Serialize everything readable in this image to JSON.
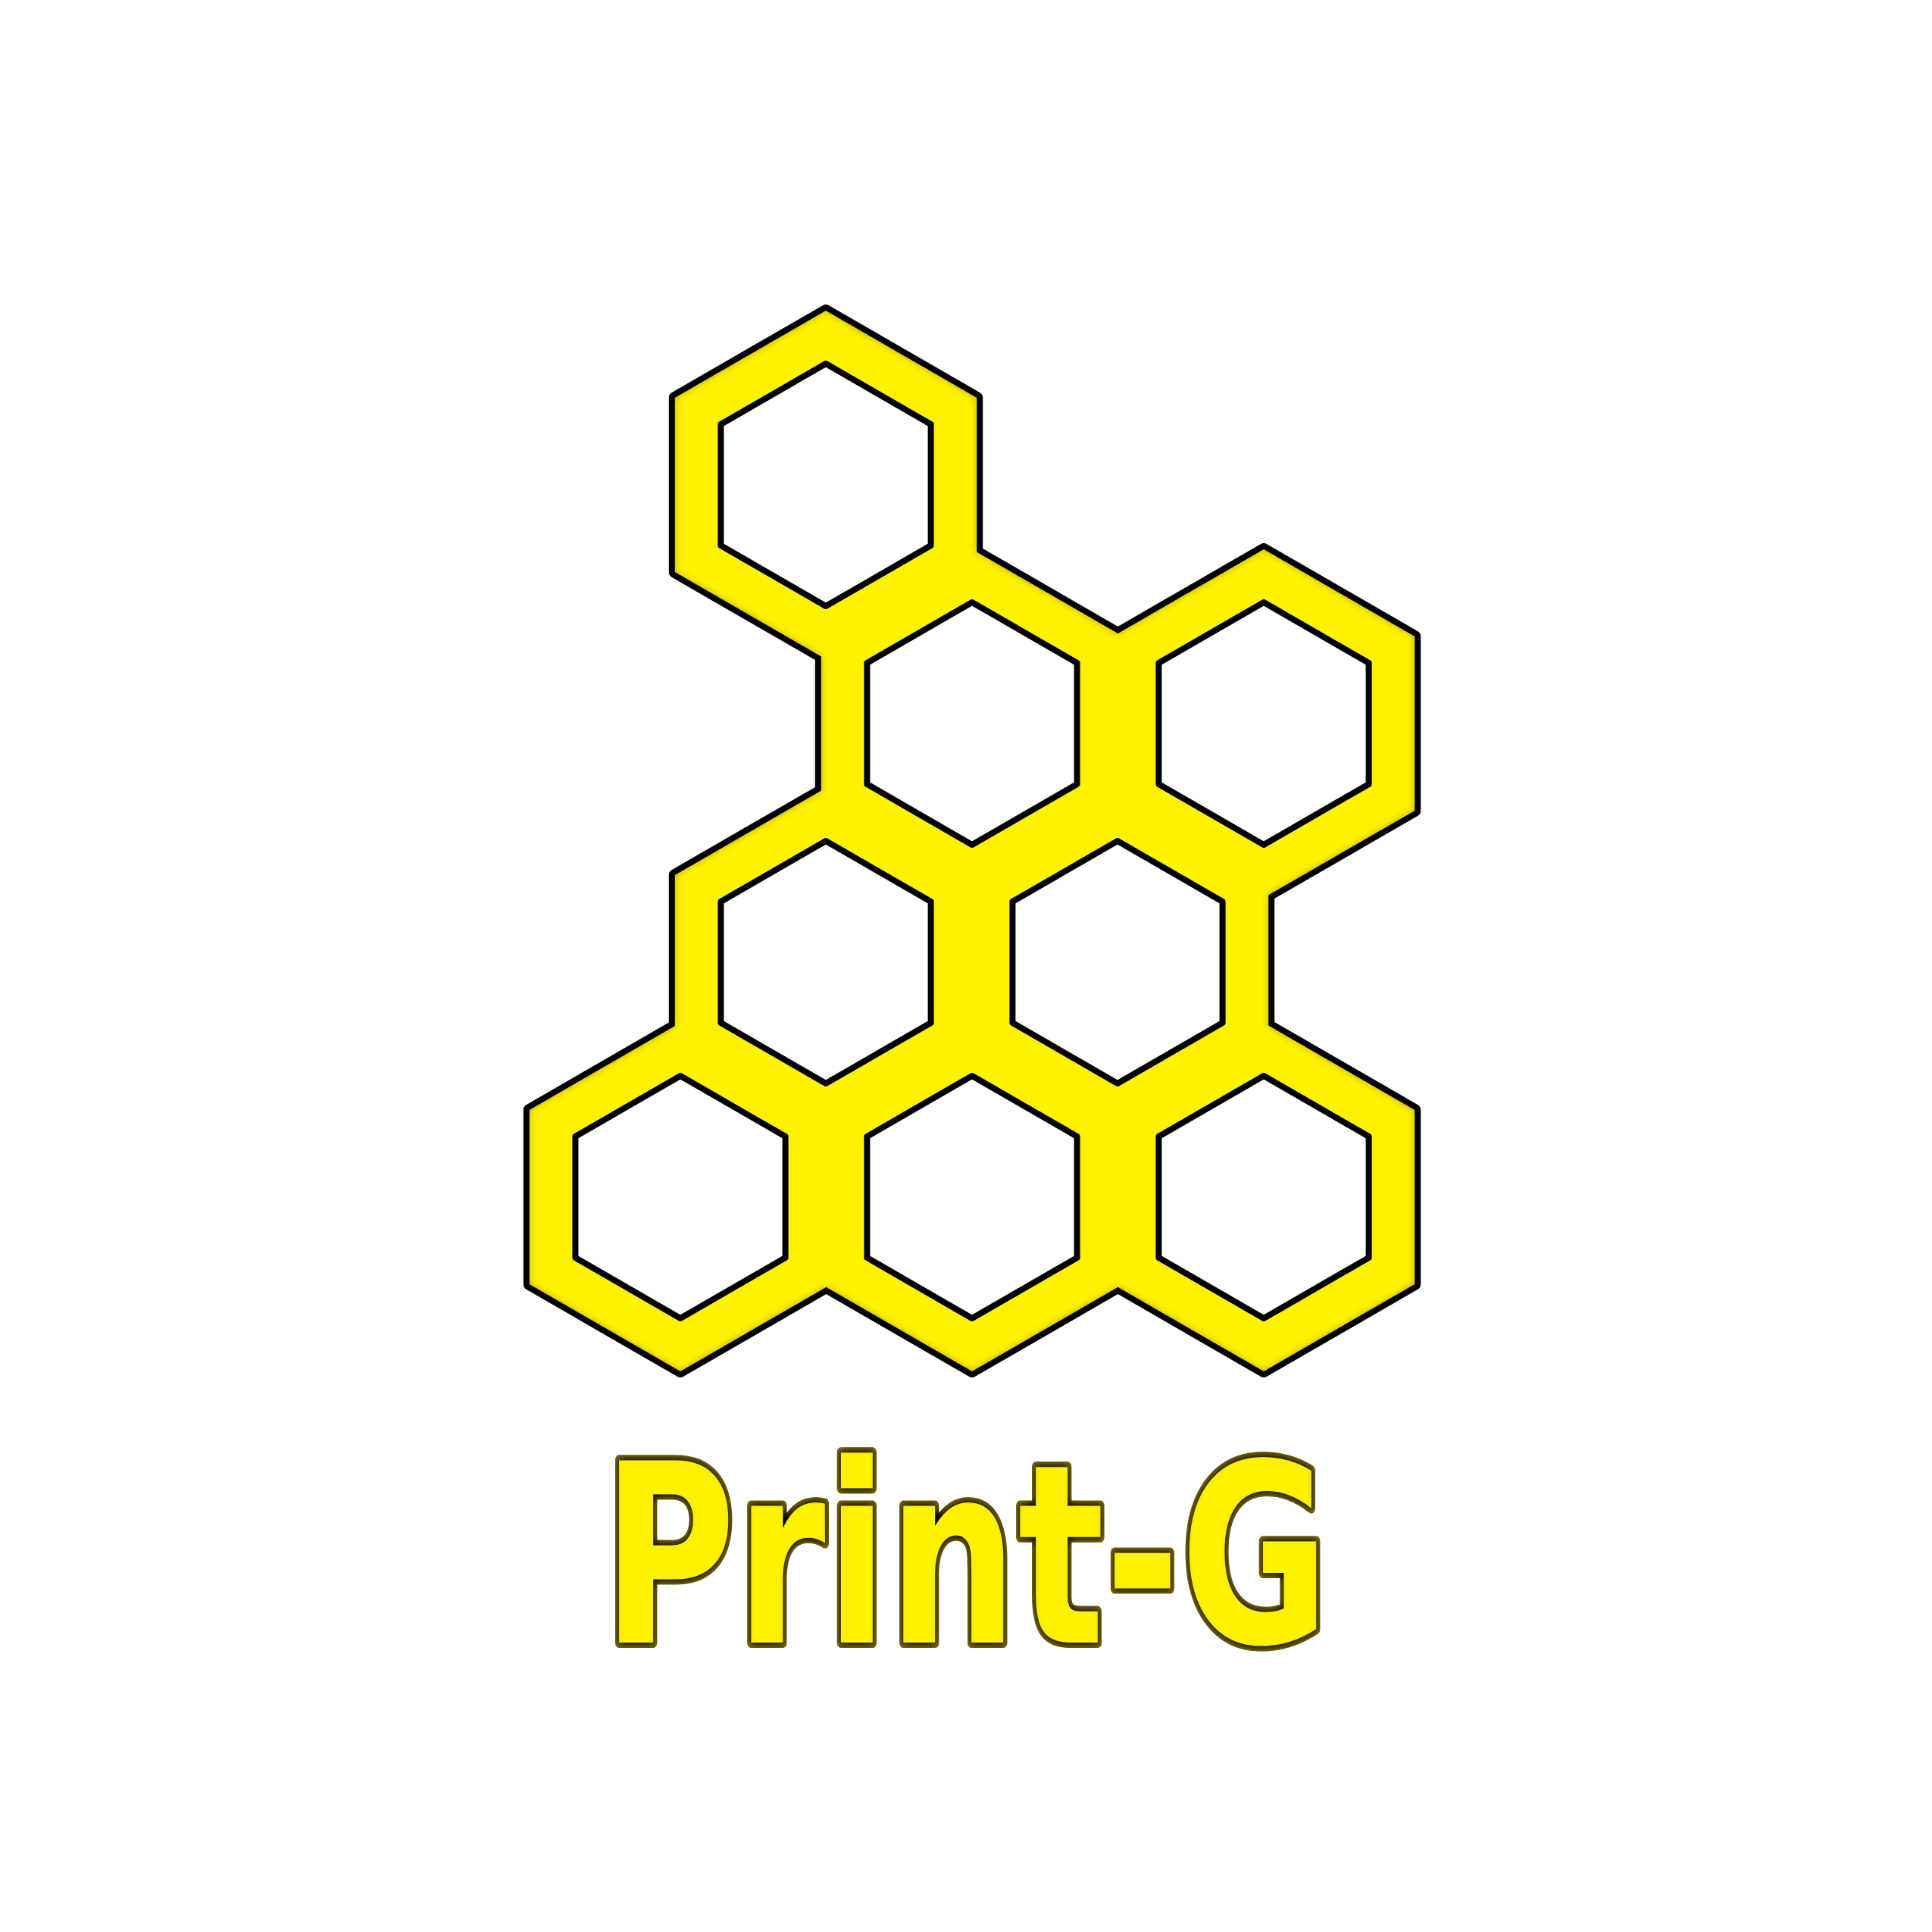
{
  "logo": {
    "brand_name": "Print-G",
    "icon": "honeycomb-icon",
    "colors": {
      "fill": "#FFF200",
      "shadow": "#A08C00",
      "outline": "#000000",
      "background": "#FFFFFF"
    }
  }
}
